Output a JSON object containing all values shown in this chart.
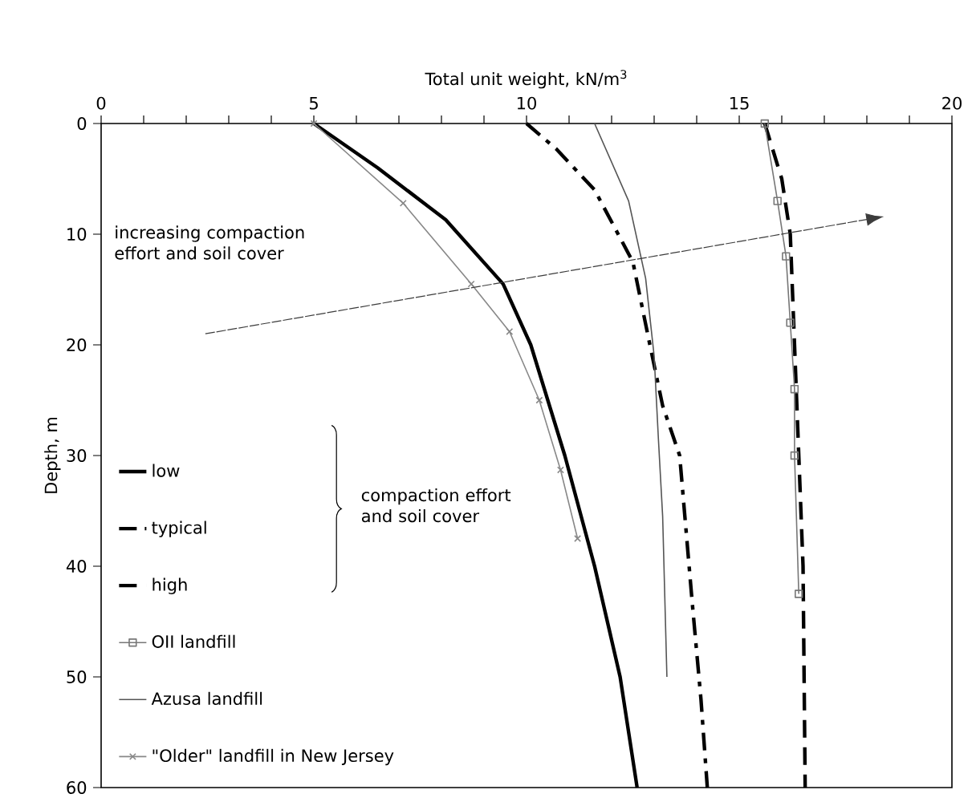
{
  "chart_data": {
    "type": "line",
    "xlabel": "Total unit weight, kN/m$^{3}$",
    "ylabel": "Depth, m",
    "xlim": [
      0,
      20
    ],
    "ylim": [
      60,
      0
    ],
    "xticks": [
      0,
      5,
      10,
      15,
      20
    ],
    "yticks": [
      0,
      10,
      20,
      30,
      40,
      50,
      60
    ],
    "legend": "bottom left",
    "annotations": [
      "increasing compaction effort and soil cover",
      "compaction effort and soil cover"
    ],
    "series": [
      {
        "name": "low",
        "color": "#000000",
        "marker": "none",
        "line_style": "solid",
        "x": [
          5,
          6.5,
          8.1,
          9.45,
          10.1,
          10.9,
          11.6,
          12.2,
          12.6
        ],
        "values": [
          0,
          4,
          8.7,
          14.5,
          20,
          30,
          40,
          50,
          60
        ]
      },
      {
        "name": "typical",
        "color": "#000000",
        "marker": "none",
        "line_style": "dashdot",
        "x": [
          10,
          10.7,
          11.6,
          12.5,
          12.9,
          13.2,
          13.6,
          13.9,
          14.1,
          14.25
        ],
        "values": [
          0,
          2.3,
          6,
          12.5,
          20,
          25.5,
          30,
          43.5,
          52,
          60
        ]
      },
      {
        "name": "high",
        "color": "#000000",
        "marker": "none",
        "line_style": "dashed",
        "x": [
          15.6,
          16,
          16.2,
          16.3,
          16.4,
          16.5,
          16.55
        ],
        "values": [
          0,
          5,
          10,
          20,
          30,
          40,
          60
        ]
      },
      {
        "name": "OII landfill",
        "color": "#777777",
        "marker": "square",
        "line_style": "solid",
        "x": [
          15.6,
          15.9,
          16.1,
          16.2,
          16.3,
          16.3,
          16.4
        ],
        "values": [
          0,
          7,
          12,
          18,
          24,
          30,
          42.5
        ]
      },
      {
        "name": "Azusa landfill",
        "color": "#555555",
        "marker": "none",
        "line_style": "solid",
        "x": [
          11.6,
          12.4,
          12.8,
          13,
          13.1,
          13.2,
          13.3
        ],
        "values": [
          0,
          7,
          14,
          21,
          28.5,
          35.5,
          50
        ]
      },
      {
        "name": "\"Older\" landfill in New Jersey",
        "color": "#888888",
        "marker": "cross",
        "line_style": "solid",
        "x": [
          5,
          7.1,
          8.7,
          9.6,
          10.3,
          10.8,
          11.2
        ],
        "values": [
          0,
          7.2,
          14.5,
          18.8,
          25,
          31.3,
          37.5
        ]
      }
    ]
  }
}
